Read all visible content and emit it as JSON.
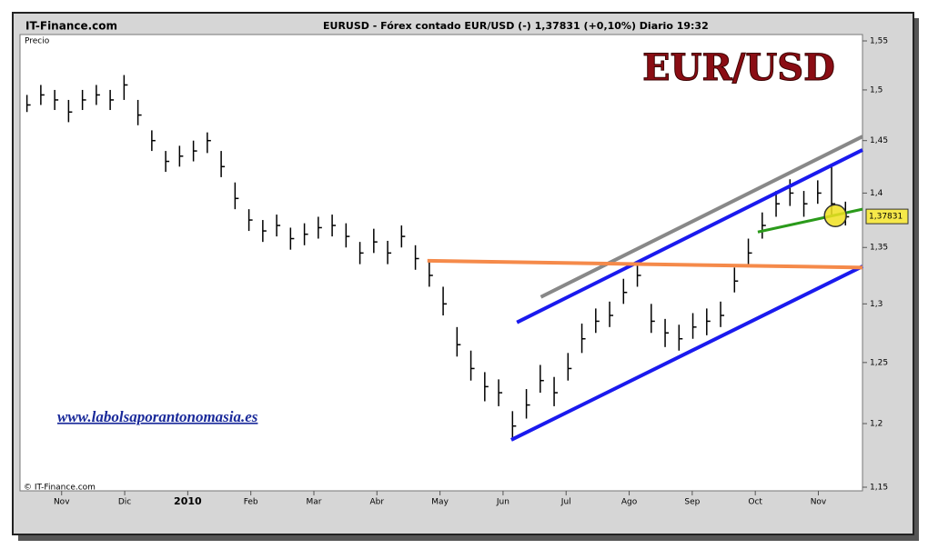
{
  "chart_data": {
    "type": "ohlc",
    "source": "IT-Finance.com",
    "title": "EURUSD - Fórex contado EUR/USD (-)   1,37831 (+0,10%)   Diario  19:32",
    "ylabel": "Precio",
    "overlay_title": "EUR/USD",
    "website": "www.labolsaporantonomasia.es",
    "copyright": "© IT-Finance.com",
    "log_scale": true,
    "color": "#000000",
    "xlim": [
      0.34,
      13.7
    ],
    "xticks": [
      {
        "value": 1,
        "label": "Nov"
      },
      {
        "value": 2,
        "label": "Dic"
      },
      {
        "value": 3,
        "label": "2010"
      },
      {
        "value": 4,
        "label": "Feb"
      },
      {
        "value": 5,
        "label": "Mar"
      },
      {
        "value": 6,
        "label": "Abr"
      },
      {
        "value": 7,
        "label": "May"
      },
      {
        "value": 8,
        "label": "Jun"
      },
      {
        "value": 9,
        "label": "Jul"
      },
      {
        "value": 10,
        "label": "Ago"
      },
      {
        "value": 11,
        "label": "Sep"
      },
      {
        "value": 12,
        "label": "Oct"
      },
      {
        "value": 13,
        "label": "Nov"
      }
    ],
    "ylim": [
      1.15,
      1.55
    ],
    "yticks": [
      {
        "value": 1.15,
        "label": "1,15"
      },
      {
        "value": 1.2,
        "label": "1,2"
      },
      {
        "value": 1.25,
        "label": "1,25"
      },
      {
        "value": 1.3,
        "label": "1,3"
      },
      {
        "value": 1.35,
        "label": "1,35"
      },
      {
        "value": 1.4,
        "label": "1,4"
      },
      {
        "value": 1.45,
        "label": "1,45"
      },
      {
        "value": 1.5,
        "label": "1,5"
      },
      {
        "value": 1.55,
        "label": "1,55"
      }
    ],
    "x": [
      0.45,
      0.67,
      0.89,
      1.11,
      1.33,
      1.55,
      1.77,
      1.99,
      2.21,
      2.43,
      2.65,
      2.87,
      3.09,
      3.31,
      3.53,
      3.75,
      3.97,
      4.19,
      4.41,
      4.63,
      4.85,
      5.07,
      5.29,
      5.51,
      5.73,
      5.95,
      6.17,
      6.39,
      6.61,
      6.83,
      7.05,
      7.27,
      7.49,
      7.71,
      7.93,
      8.15,
      8.37,
      8.59,
      8.81,
      9.03,
      9.25,
      9.47,
      9.69,
      9.91,
      10.13,
      10.35,
      10.57,
      10.79,
      11.01,
      11.23,
      11.45,
      11.67,
      11.89,
      12.11,
      12.33,
      12.55,
      12.77,
      12.99,
      13.21,
      13.43
    ],
    "high": [
      1.495,
      1.505,
      1.5,
      1.49,
      1.5,
      1.505,
      1.5,
      1.515,
      1.49,
      1.46,
      1.44,
      1.445,
      1.45,
      1.458,
      1.44,
      1.41,
      1.385,
      1.375,
      1.38,
      1.368,
      1.372,
      1.378,
      1.38,
      1.372,
      1.355,
      1.367,
      1.356,
      1.37,
      1.352,
      1.338,
      1.315,
      1.28,
      1.26,
      1.242,
      1.236,
      1.21,
      1.228,
      1.248,
      1.238,
      1.258,
      1.283,
      1.296,
      1.302,
      1.322,
      1.337,
      1.3,
      1.287,
      1.282,
      1.292,
      1.296,
      1.302,
      1.332,
      1.358,
      1.382,
      1.402,
      1.413,
      1.402,
      1.412,
      1.425,
      1.392
    ],
    "low": [
      1.478,
      1.485,
      1.48,
      1.468,
      1.48,
      1.485,
      1.48,
      1.49,
      1.465,
      1.44,
      1.42,
      1.425,
      1.43,
      1.438,
      1.415,
      1.385,
      1.365,
      1.355,
      1.36,
      1.348,
      1.352,
      1.358,
      1.36,
      1.35,
      1.335,
      1.345,
      1.335,
      1.35,
      1.33,
      1.315,
      1.29,
      1.255,
      1.235,
      1.218,
      1.214,
      1.188,
      1.204,
      1.225,
      1.214,
      1.235,
      1.258,
      1.275,
      1.28,
      1.3,
      1.315,
      1.275,
      1.263,
      1.26,
      1.27,
      1.273,
      1.28,
      1.31,
      1.335,
      1.358,
      1.378,
      1.388,
      1.378,
      1.39,
      1.38,
      1.37
    ],
    "close": [
      1.485,
      1.495,
      1.49,
      1.478,
      1.49,
      1.495,
      1.49,
      1.505,
      1.475,
      1.45,
      1.43,
      1.435,
      1.44,
      1.45,
      1.425,
      1.395,
      1.375,
      1.365,
      1.37,
      1.358,
      1.362,
      1.368,
      1.37,
      1.36,
      1.345,
      1.355,
      1.345,
      1.36,
      1.34,
      1.325,
      1.3,
      1.265,
      1.245,
      1.23,
      1.225,
      1.198,
      1.215,
      1.235,
      1.225,
      1.245,
      1.27,
      1.285,
      1.29,
      1.31,
      1.325,
      1.285,
      1.275,
      1.27,
      1.28,
      1.285,
      1.29,
      1.32,
      1.345,
      1.37,
      1.39,
      1.4,
      1.39,
      1.4,
      1.39,
      1.378
    ],
    "trendlines": [
      {
        "color": "#888888",
        "x": [
          8.6,
          13.7
        ],
        "y": [
          1.306,
          1.454
        ]
      },
      {
        "color": "#1a1aee",
        "x": [
          8.22,
          13.7
        ],
        "y": [
          1.284,
          1.441
        ]
      },
      {
        "color": "#1a1aee",
        "x": [
          8.13,
          13.7
        ],
        "y": [
          1.187,
          1.333
        ]
      },
      {
        "color": "#f58a4a",
        "x": [
          6.8,
          13.7
        ],
        "y": [
          1.338,
          1.332
        ]
      },
      {
        "color": "#2a9a1a",
        "x": [
          12.04,
          13.7
        ],
        "y": [
          1.364,
          1.385
        ]
      }
    ],
    "highlight": {
      "x": 13.27,
      "y": 1.379,
      "color": "#f0e020"
    },
    "last_price": {
      "value": 1.37831,
      "label": "1,37831"
    }
  }
}
